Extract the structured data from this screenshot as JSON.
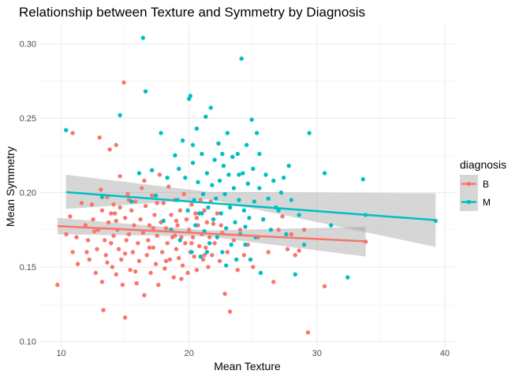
{
  "chart_data": {
    "type": "scatter",
    "title": "Relationship between Texture and Symmetry by Diagnosis",
    "xlabel": "Mean Texture",
    "ylabel": "Mean Symmetry",
    "xlim": [
      8.3,
      40.8
    ],
    "ylim": [
      0.0955,
      0.3125
    ],
    "x_ticks": [
      10,
      20,
      30,
      40
    ],
    "y_ticks": [
      0.1,
      0.15,
      0.2,
      0.25,
      0.3
    ],
    "x_tick_labels": [
      "10",
      "20",
      "30",
      "40"
    ],
    "y_tick_labels": [
      "0.10",
      "0.15",
      "0.20",
      "0.25",
      "0.30"
    ],
    "grid": true,
    "legend": {
      "title": "diagnosis",
      "placement": "right",
      "entries": [
        "B",
        "M"
      ]
    },
    "series": [
      {
        "name": "B",
        "color": "#F8766D",
        "trend": {
          "x": [
            9.71,
            33.81
          ],
          "y": [
            0.1775,
            0.1672
          ]
        },
        "band": {
          "x": [
            9.71,
            21.5,
            33.81
          ],
          "lower": [
            0.172,
            0.1705,
            0.157
          ],
          "upper": [
            0.183,
            0.1745,
            0.177
          ]
        },
        "points": [
          [
            9.71,
            0.138
          ],
          [
            10.4,
            0.172
          ],
          [
            10.7,
            0.184
          ],
          [
            10.9,
            0.24
          ],
          [
            10.9,
            0.16
          ],
          [
            11.2,
            0.17
          ],
          [
            11.3,
            0.152
          ],
          [
            11.6,
            0.193
          ],
          [
            11.9,
            0.178
          ],
          [
            12.1,
            0.168
          ],
          [
            12.2,
            0.155
          ],
          [
            12.4,
            0.192
          ],
          [
            12.5,
            0.182
          ],
          [
            12.7,
            0.146
          ],
          [
            12.8,
            0.162
          ],
          [
            12.9,
            0.175
          ],
          [
            13.0,
            0.237
          ],
          [
            13.1,
            0.202
          ],
          [
            13.2,
            0.188
          ],
          [
            13.2,
            0.14
          ],
          [
            13.3,
            0.121
          ],
          [
            13.4,
            0.168
          ],
          [
            13.5,
            0.158
          ],
          [
            13.6,
            0.197
          ],
          [
            13.7,
            0.18
          ],
          [
            13.8,
            0.229
          ],
          [
            13.9,
            0.166
          ],
          [
            14.0,
            0.15
          ],
          [
            14.1,
            0.192
          ],
          [
            14.1,
            0.171
          ],
          [
            14.2,
            0.186
          ],
          [
            14.3,
            0.145
          ],
          [
            14.3,
            0.232
          ],
          [
            14.4,
            0.175
          ],
          [
            14.5,
            0.162
          ],
          [
            14.6,
            0.211
          ],
          [
            14.6,
            0.19
          ],
          [
            14.7,
            0.155
          ],
          [
            14.8,
            0.138
          ],
          [
            14.9,
            0.274
          ],
          [
            15.0,
            0.116
          ],
          [
            15.0,
            0.183
          ],
          [
            15.1,
            0.168
          ],
          [
            15.2,
            0.199
          ],
          [
            15.3,
            0.172
          ],
          [
            15.4,
            0.148
          ],
          [
            15.5,
            0.188
          ],
          [
            15.6,
            0.16
          ],
          [
            15.7,
            0.178
          ],
          [
            15.8,
            0.194
          ],
          [
            15.9,
            0.139
          ],
          [
            16.0,
            0.166
          ],
          [
            16.1,
            0.154
          ],
          [
            16.2,
            0.182
          ],
          [
            16.3,
            0.203
          ],
          [
            16.4,
            0.173
          ],
          [
            16.5,
            0.131
          ],
          [
            16.6,
            0.191
          ],
          [
            16.7,
            0.158
          ],
          [
            16.8,
            0.168
          ],
          [
            16.9,
            0.178
          ],
          [
            17.0,
            0.146
          ],
          [
            17.1,
            0.198
          ],
          [
            17.2,
            0.163
          ],
          [
            17.3,
            0.185
          ],
          [
            17.4,
            0.152
          ],
          [
            17.5,
            0.171
          ],
          [
            17.6,
            0.138
          ],
          [
            17.7,
            0.212
          ],
          [
            17.8,
            0.18
          ],
          [
            17.9,
            0.16
          ],
          [
            18.0,
            0.193
          ],
          [
            18.1,
            0.149
          ],
          [
            18.2,
            0.176
          ],
          [
            18.3,
            0.166
          ],
          [
            18.4,
            0.204
          ],
          [
            18.5,
            0.155
          ],
          [
            18.6,
            0.185
          ],
          [
            18.7,
            0.17
          ],
          [
            18.8,
            0.143
          ],
          [
            18.9,
            0.195
          ],
          [
            19.0,
            0.162
          ],
          [
            19.1,
            0.178
          ],
          [
            19.2,
            0.156
          ],
          [
            19.3,
            0.188
          ],
          [
            19.4,
            0.17
          ],
          [
            19.5,
            0.151
          ],
          [
            19.6,
            0.199
          ],
          [
            19.7,
            0.166
          ],
          [
            19.8,
            0.182
          ],
          [
            19.9,
            0.146
          ],
          [
            20.0,
            0.175
          ],
          [
            20.1,
            0.16
          ],
          [
            20.2,
            0.192
          ],
          [
            20.3,
            0.17
          ],
          [
            20.4,
            0.157
          ],
          [
            20.5,
            0.186
          ],
          [
            20.6,
            0.148
          ],
          [
            20.7,
            0.178
          ],
          [
            20.8,
            0.164
          ],
          [
            20.9,
            0.195
          ],
          [
            21.0,
            0.172
          ],
          [
            21.1,
            0.155
          ],
          [
            21.2,
            0.188
          ],
          [
            21.3,
            0.163
          ],
          [
            21.4,
            0.18
          ],
          [
            21.5,
            0.15
          ],
          [
            21.6,
            0.17
          ],
          [
            21.7,
            0.194
          ],
          [
            21.8,
            0.158
          ],
          [
            21.9,
            0.179
          ],
          [
            22.0,
            0.166
          ],
          [
            22.2,
            0.186
          ],
          [
            22.4,
            0.154
          ],
          [
            22.6,
            0.173
          ],
          [
            22.8,
            0.132
          ],
          [
            23.0,
            0.16
          ],
          [
            23.2,
            0.12
          ],
          [
            23.5,
            0.168
          ],
          [
            23.8,
            0.148
          ],
          [
            24.0,
            0.175
          ],
          [
            24.3,
            0.158
          ],
          [
            24.6,
            0.165
          ],
          [
            25.0,
            0.15
          ],
          [
            25.4,
            0.17
          ],
          [
            25.8,
            0.182
          ],
          [
            26.2,
            0.16
          ],
          [
            26.6,
            0.14
          ],
          [
            27.0,
            0.175
          ],
          [
            27.3,
            0.184
          ],
          [
            27.7,
            0.162
          ],
          [
            28.0,
            0.172
          ],
          [
            28.3,
            0.158
          ],
          [
            28.6,
            0.161
          ],
          [
            29.0,
            0.175
          ],
          [
            29.3,
            0.106
          ],
          [
            30.6,
            0.137
          ],
          [
            33.81,
            0.167
          ],
          [
            12.6,
            0.174
          ],
          [
            13.6,
            0.153
          ],
          [
            15.3,
            0.195
          ],
          [
            16.5,
            0.208
          ],
          [
            17.5,
            0.193
          ],
          [
            18.2,
            0.154
          ],
          [
            19.0,
            0.181
          ],
          [
            20.2,
            0.166
          ],
          [
            21.2,
            0.158
          ],
          [
            22.5,
            0.178
          ],
          [
            14.3,
            0.181
          ],
          [
            15.8,
            0.147
          ],
          [
            16.9,
            0.163
          ],
          [
            18.9,
            0.171
          ],
          [
            20.6,
            0.183
          ],
          [
            19.4,
            0.142
          ],
          [
            17.2,
            0.176
          ],
          [
            15.0,
            0.159
          ],
          [
            13.9,
            0.186
          ],
          [
            12.0,
            0.16
          ]
        ]
      },
      {
        "name": "M",
        "color": "#00BFC4",
        "trend": {
          "x": [
            10.38,
            39.28
          ],
          "y": [
            0.2003,
            0.1815
          ]
        },
        "band": {
          "x": [
            10.38,
            21.5,
            39.28
          ],
          "lower": [
            0.189,
            0.1955,
            0.1635
          ],
          "upper": [
            0.212,
            0.2005,
            0.1995
          ]
        },
        "points": [
          [
            10.38,
            0.242
          ],
          [
            13.2,
            0.197
          ],
          [
            14.6,
            0.252
          ],
          [
            15.5,
            0.194
          ],
          [
            16.1,
            0.213
          ],
          [
            16.4,
            0.304
          ],
          [
            16.6,
            0.268
          ],
          [
            17.1,
            0.215
          ],
          [
            17.4,
            0.198
          ],
          [
            17.8,
            0.24
          ],
          [
            18.0,
            0.181
          ],
          [
            18.3,
            0.21
          ],
          [
            18.6,
            0.175
          ],
          [
            18.9,
            0.225
          ],
          [
            19.1,
            0.195
          ],
          [
            19.3,
            0.168
          ],
          [
            19.5,
            0.235
          ],
          [
            19.7,
            0.21
          ],
          [
            19.9,
            0.188
          ],
          [
            20.0,
            0.263
          ],
          [
            20.1,
            0.265
          ],
          [
            20.2,
            0.16
          ],
          [
            20.3,
            0.22
          ],
          [
            20.4,
            0.195
          ],
          [
            20.5,
            0.178
          ],
          [
            20.6,
            0.243
          ],
          [
            20.7,
            0.207
          ],
          [
            20.8,
            0.186
          ],
          [
            20.9,
            0.157
          ],
          [
            21.0,
            0.226
          ],
          [
            21.1,
            0.199
          ],
          [
            21.2,
            0.174
          ],
          [
            21.3,
            0.251
          ],
          [
            21.4,
            0.213
          ],
          [
            21.5,
            0.19
          ],
          [
            21.6,
            0.166
          ],
          [
            21.7,
            0.257
          ],
          [
            21.8,
            0.205
          ],
          [
            21.9,
            0.182
          ],
          [
            22.0,
            0.222
          ],
          [
            22.1,
            0.196
          ],
          [
            22.2,
            0.17
          ],
          [
            22.3,
            0.233
          ],
          [
            22.4,
            0.208
          ],
          [
            22.5,
            0.186
          ],
          [
            22.6,
            0.16
          ],
          [
            22.7,
            0.218
          ],
          [
            22.8,
            0.199
          ],
          [
            22.9,
            0.176
          ],
          [
            23.0,
            0.24
          ],
          [
            23.1,
            0.212
          ],
          [
            23.2,
            0.19
          ],
          [
            23.3,
            0.165
          ],
          [
            23.4,
            0.224
          ],
          [
            23.5,
            0.203
          ],
          [
            23.6,
            0.18
          ],
          [
            23.7,
            0.155
          ],
          [
            23.8,
            0.226
          ],
          [
            23.9,
            0.195
          ],
          [
            24.0,
            0.172
          ],
          [
            24.1,
            0.29
          ],
          [
            24.2,
            0.213
          ],
          [
            24.3,
            0.188
          ],
          [
            24.4,
            0.165
          ],
          [
            24.5,
            0.232
          ],
          [
            24.6,
            0.206
          ],
          [
            24.7,
            0.183
          ],
          [
            24.8,
            0.155
          ],
          [
            24.9,
            0.249
          ],
          [
            25.0,
            0.216
          ],
          [
            25.1,
            0.194
          ],
          [
            25.2,
            0.17
          ],
          [
            25.3,
            0.24
          ],
          [
            25.5,
            0.203
          ],
          [
            25.6,
            0.146
          ],
          [
            25.8,
            0.182
          ],
          [
            26.0,
            0.212
          ],
          [
            26.2,
            0.196
          ],
          [
            26.4,
            0.175
          ],
          [
            26.6,
            0.208
          ],
          [
            26.8,
            0.19
          ],
          [
            27.0,
            0.188
          ],
          [
            27.2,
            0.2
          ],
          [
            27.4,
            0.21
          ],
          [
            27.6,
            0.172
          ],
          [
            28.0,
            0.195
          ],
          [
            28.3,
            0.145
          ],
          [
            28.6,
            0.185
          ],
          [
            29.0,
            0.165
          ],
          [
            29.4,
            0.24
          ],
          [
            30.6,
            0.213
          ],
          [
            31.1,
            0.178
          ],
          [
            32.4,
            0.143
          ],
          [
            33.6,
            0.209
          ],
          [
            33.8,
            0.185
          ],
          [
            39.28,
            0.181
          ],
          [
            19.2,
            0.216
          ],
          [
            20.3,
            0.232
          ],
          [
            21.0,
            0.186
          ],
          [
            22.6,
            0.226
          ],
          [
            23.9,
            0.212
          ],
          [
            25.5,
            0.226
          ],
          [
            24.4,
            0.177
          ],
          [
            21.4,
            0.16
          ],
          [
            22.9,
            0.151
          ],
          [
            27.8,
            0.218
          ]
        ]
      }
    ]
  }
}
